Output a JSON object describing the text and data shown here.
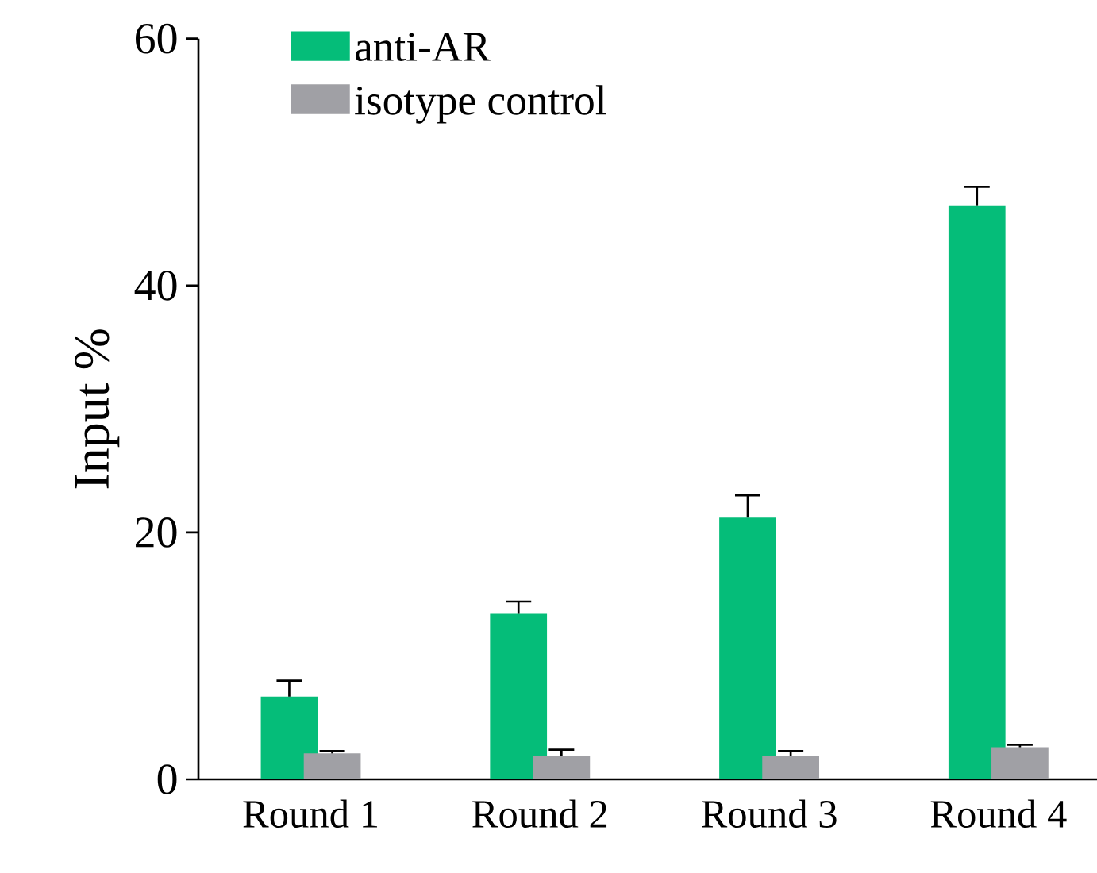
{
  "chart_data": {
    "type": "bar",
    "ylabel": "Input %",
    "categories": [
      "Round 1",
      "Round 2",
      "Round 3",
      "Round 4"
    ],
    "series": [
      {
        "name": "anti-AR",
        "color": "#05bd79",
        "values": [
          6.7,
          13.4,
          21.2,
          46.5
        ],
        "errors": [
          1.3,
          1.0,
          1.8,
          1.5
        ]
      },
      {
        "name": "isotype control",
        "color": "#a0a0a5",
        "values": [
          2.1,
          1.9,
          1.9,
          2.6
        ],
        "errors": [
          0.2,
          0.5,
          0.4,
          0.2
        ]
      }
    ],
    "ylim": [
      0,
      60
    ],
    "yticks": [
      0,
      20,
      40,
      60
    ],
    "legend": "top left",
    "grid": false
  }
}
